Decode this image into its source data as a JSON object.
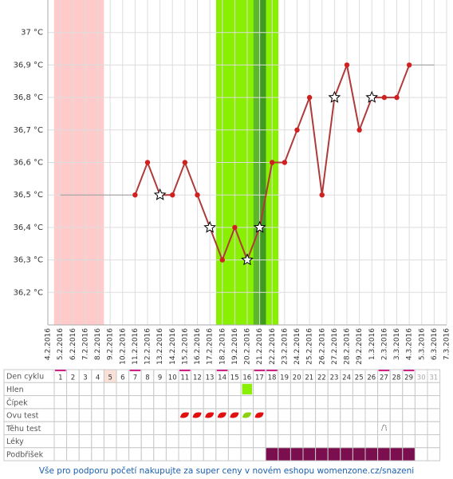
{
  "chart_data": {
    "type": "line",
    "categories": [
      "4.2.2016",
      "5.2.2016",
      "6.2.2016",
      "7.2.2016",
      "8.2.2016",
      "9.2.2016",
      "10.2.2016",
      "11.2.2016",
      "12.2.2016",
      "13.2.2016",
      "14.2.2016",
      "15.2.2016",
      "16.2.2016",
      "17.2.2016",
      "18.2.2016",
      "19.2.2016",
      "20.2.2016",
      "21.2.2016",
      "22.2.2016",
      "23.2.2016",
      "24.2.2016",
      "25.2.2016",
      "26.2.2016",
      "27.2.2016",
      "28.2.2016",
      "29.2.2016",
      "1.3.2016",
      "2.3.2016",
      "3.3.2016",
      "4.3.2016",
      "5.3.2016",
      "6.3.2016",
      "7.3.2016"
    ],
    "series": [
      {
        "color": "#b03a3a",
        "marker_color": "#d02020",
        "values": [
          null,
          null,
          null,
          null,
          null,
          null,
          null,
          36.5,
          36.6,
          36.5,
          36.5,
          36.6,
          36.5,
          36.4,
          36.3,
          36.4,
          36.3,
          36.4,
          36.6,
          36.6,
          36.7,
          36.8,
          36.5,
          36.8,
          36.9,
          36.7,
          36.8,
          36.8,
          36.8,
          36.9,
          null,
          null,
          null
        ],
        "markers": [
          null,
          null,
          null,
          null,
          null,
          null,
          null,
          "dot",
          "dot",
          "star",
          "dot",
          "dot",
          "dot",
          "star",
          "dot",
          "dot",
          "star",
          "star",
          "dot",
          "dot",
          "dot",
          "dot",
          "dot",
          "star",
          "dot",
          "dot",
          "star",
          "dot",
          "dot",
          "dot",
          null,
          null,
          null
        ]
      },
      {
        "color": "#999999",
        "values": [
          null,
          36.5,
          36.5,
          36.5,
          36.5,
          36.5,
          36.5,
          36.5,
          null,
          null,
          null,
          null,
          null,
          null,
          null,
          null,
          null,
          null,
          null,
          null,
          null,
          null,
          null,
          null,
          null,
          null,
          null,
          null,
          null,
          36.9,
          36.9,
          36.9,
          null
        ]
      }
    ],
    "bands": [
      {
        "from": "5.2.2016",
        "to": "8.2.2016",
        "color": "#ffcaca"
      },
      {
        "from": "18.2.2016",
        "to": "22.2.2016",
        "color": "#88f000"
      },
      {
        "from": "21.2.2016",
        "to": "21.2.2016",
        "color": "#5cb82a"
      }
    ],
    "ylim": [
      36.1,
      37.1
    ],
    "yticks": [
      {
        "value": 36.2,
        "label": "36,2 °C"
      },
      {
        "value": 36.3,
        "label": "36,3 °C"
      },
      {
        "value": 36.4,
        "label": "36,4 °C"
      },
      {
        "value": 36.5,
        "label": "36,5 °C"
      },
      {
        "value": 36.6,
        "label": "36,6 °C"
      },
      {
        "value": 36.7,
        "label": "36,7 °C"
      },
      {
        "value": 36.8,
        "label": "36,8 °C"
      },
      {
        "value": 36.9,
        "label": "36,9 °C"
      },
      {
        "value": 37.0,
        "label": "37 °C"
      }
    ],
    "grid": true
  },
  "table": {
    "days": [
      1,
      2,
      3,
      4,
      5,
      6,
      7,
      8,
      9,
      10,
      11,
      12,
      13,
      14,
      15,
      16,
      17,
      18,
      19,
      20,
      21,
      22,
      23,
      24,
      25,
      26,
      27,
      28,
      29,
      30,
      31
    ],
    "highlight_day": 5,
    "future_days": [
      30,
      31
    ],
    "top_marked_days": [
      1,
      7,
      11,
      14,
      17,
      18,
      27,
      29
    ],
    "rows": [
      {
        "label": "Den cyklu"
      },
      {
        "label": "Hlen",
        "green_days": [
          16
        ]
      },
      {
        "label": "Čípek"
      },
      {
        "label": "Ovu test",
        "red_days": [
          11,
          12,
          13,
          14,
          15,
          17
        ],
        "green_days": [
          16
        ]
      },
      {
        "label": "Těhu test",
        "icon_days": [
          27
        ]
      },
      {
        "label": "Léky"
      },
      {
        "label": "Podbřišek",
        "purple_days": [
          18,
          19,
          20,
          21,
          22,
          23,
          24,
          25,
          26,
          27,
          28,
          29
        ]
      }
    ]
  },
  "footer": "Vše pro podporu početí nakupujte za super ceny v novém eshopu womenzone.cz/snazeni"
}
